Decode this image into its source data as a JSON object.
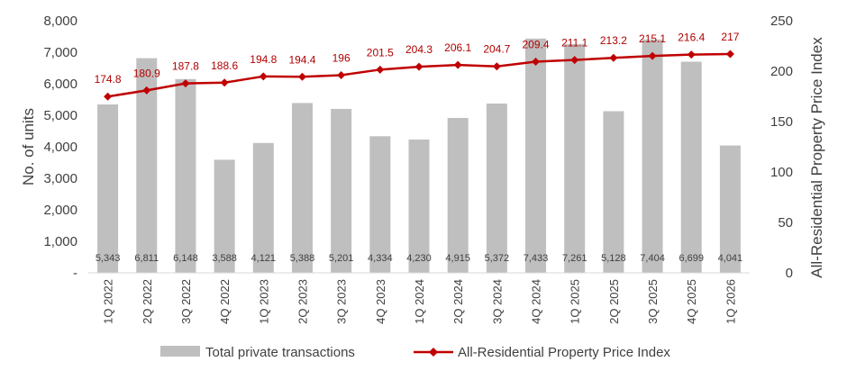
{
  "chart_data": {
    "type": "bar",
    "categories": [
      "1Q 2022",
      "2Q 2022",
      "3Q 2022",
      "4Q 2022",
      "1Q 2023",
      "2Q 2023",
      "3Q 2023",
      "4Q 2023",
      "1Q 2024",
      "2Q 2024",
      "3Q 2024",
      "4Q 2024",
      "1Q 2025",
      "2Q 2025",
      "3Q 2025",
      "4Q 2025",
      "1Q 2026"
    ],
    "series": [
      {
        "name": "Total private transactions",
        "type": "bar",
        "axis": "left",
        "color": "#bfbfbf",
        "values": [
          5343,
          6811,
          6148,
          3588,
          4121,
          5388,
          5201,
          4334,
          4230,
          4915,
          5372,
          7433,
          7261,
          5128,
          7404,
          6699,
          4041
        ],
        "labels": [
          "5,343",
          "6,811",
          "6,148",
          "3,588",
          "4,121",
          "5,388",
          "5,201",
          "4,334",
          "4,230",
          "4,915",
          "5,372",
          "7,433",
          "7,261",
          "5,128",
          "7,404",
          "6,699",
          "4,041"
        ]
      },
      {
        "name": "All-Residential Property Price Index",
        "type": "line",
        "axis": "right",
        "color": "#c00000",
        "values": [
          174.8,
          180.9,
          187.8,
          188.6,
          194.8,
          194.4,
          196,
          201.5,
          204.3,
          206.1,
          204.7,
          209.4,
          211.1,
          213.2,
          215.1,
          216.4,
          217
        ],
        "labels": [
          "174.8",
          "180.9",
          "187.8",
          "188.6",
          "194.8",
          "194.4",
          "196",
          "201.5",
          "204.3",
          "206.1",
          "204.7",
          "209.4",
          "211.1",
          "213.2",
          "215.1",
          "216.4",
          "217"
        ]
      }
    ],
    "y_left": {
      "label": "No. of units",
      "min": 0,
      "max": 8000,
      "ticks": [
        0,
        1000,
        2000,
        3000,
        4000,
        5000,
        6000,
        7000,
        8000
      ],
      "tick_labels": [
        "-",
        "1,000",
        "2,000",
        "3,000",
        "4,000",
        "5,000",
        "6,000",
        "7,000",
        "8,000"
      ]
    },
    "y_right": {
      "label": "All-Residential Property Price Index",
      "min": 0,
      "max": 250,
      "ticks": [
        0,
        50,
        100,
        150,
        200,
        250
      ],
      "tick_labels": [
        "0",
        "50",
        "100",
        "150",
        "200",
        "250"
      ]
    },
    "grid": false,
    "legend_position": "bottom"
  }
}
